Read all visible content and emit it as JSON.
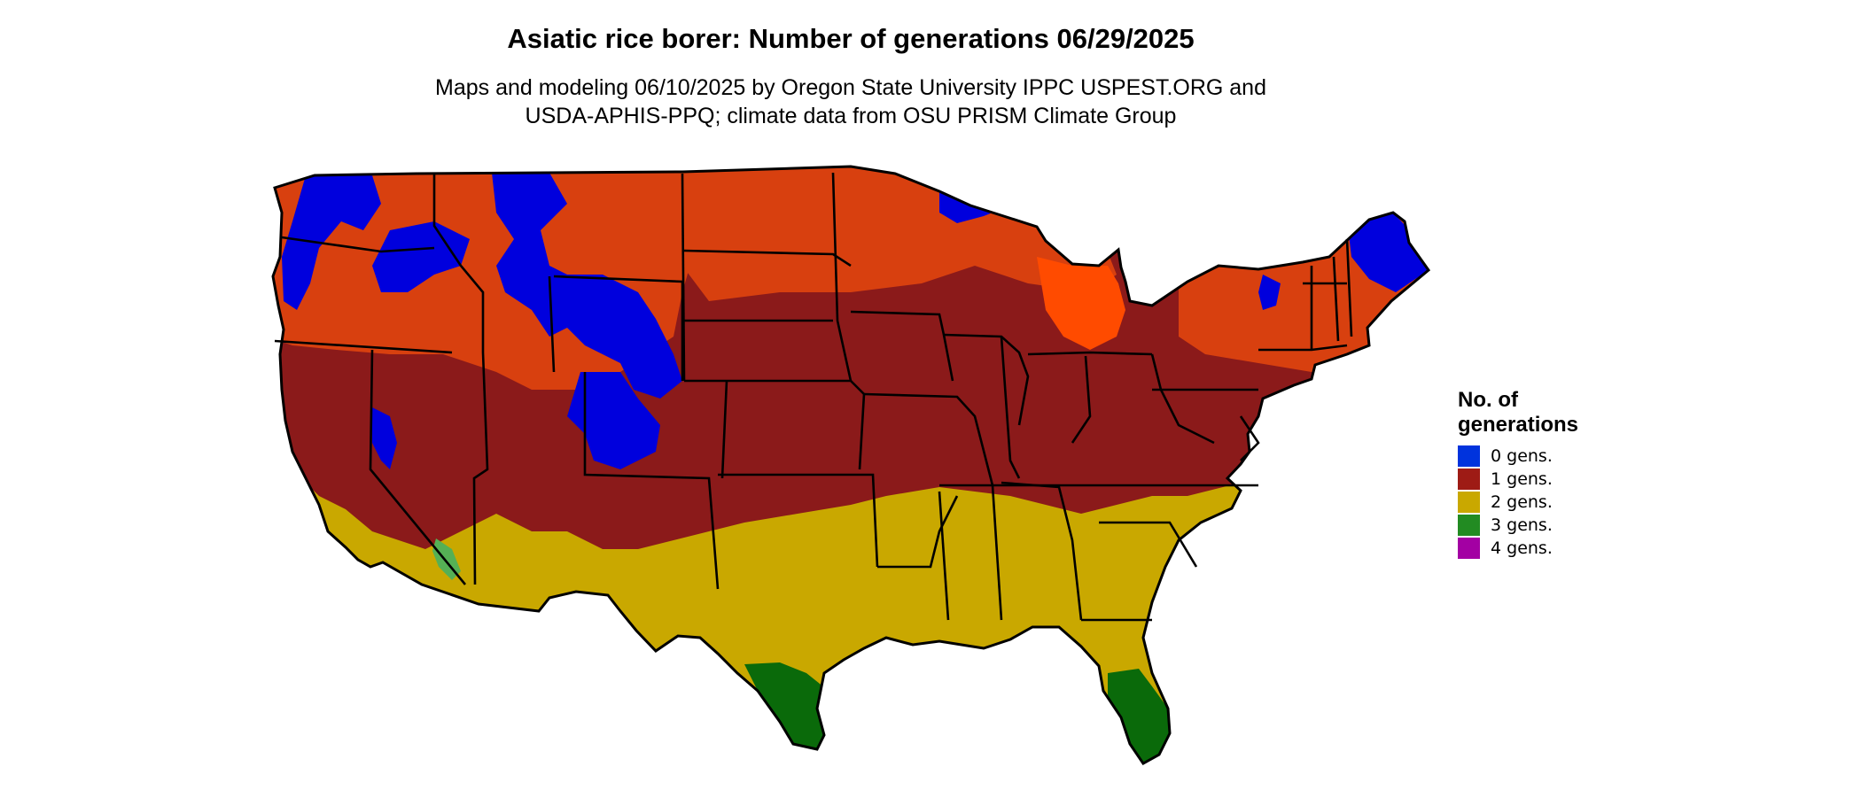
{
  "title": "Asiatic rice borer: Number of generations 06/29/2025",
  "subtitle_lines": [
    "Maps and modeling 06/10/2025 by Oregon State University IPPC USPEST.ORG and",
    "USDA-APHIS-PPQ; climate data from OSU PRISM Climate Group"
  ],
  "legend": {
    "title_lines": [
      "No. of",
      "generations"
    ],
    "items": [
      {
        "label": "0 gens.",
        "color": "#0033dd"
      },
      {
        "label": "1 gens.",
        "color": "#9e1b15"
      },
      {
        "label": "2 gens.",
        "color": "#c9a800"
      },
      {
        "label": "3 gens.",
        "color": "#228b22"
      },
      {
        "label": "4 gens.",
        "color": "#a300a3"
      }
    ]
  },
  "map": {
    "region": "contiguous-united-states",
    "colors": {
      "zero_gens": "#0000dd",
      "one_gen_dark": "#8b1a1a",
      "one_gen_orange": "#d8400f",
      "one_gen_bright": "#ff4b00",
      "two_gens": "#c9a800",
      "two_gens_light": "#f0e000",
      "three_gens": "#0a6a0a",
      "three_gens_light": "#55b055",
      "state_border": "#000000"
    }
  }
}
